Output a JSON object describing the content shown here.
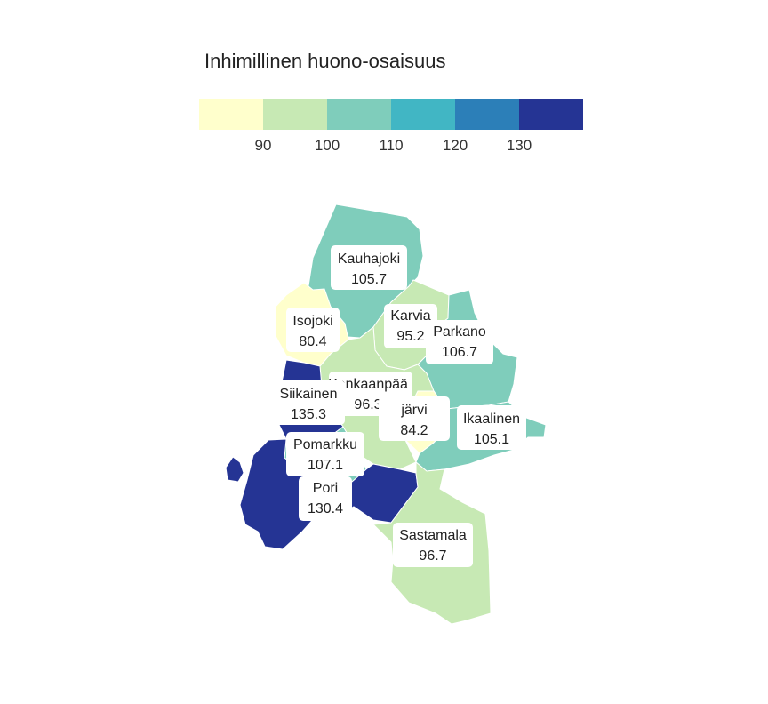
{
  "legend": {
    "title": "Inhimillinen huono-osaisuus",
    "ticks": [
      "90",
      "100",
      "110",
      "120",
      "130"
    ],
    "colors": [
      "#ffffcc",
      "#c7e9b4",
      "#7fcdbb",
      "#41b6c4",
      "#2c7fb8",
      "#253494"
    ]
  },
  "regions": [
    {
      "name": "Kauhajoki",
      "value": "105.7",
      "color": "#7fcdbb"
    },
    {
      "name": "Isojoki",
      "value": "80.4",
      "color": "#ffffcc"
    },
    {
      "name": "Karvia",
      "value": "95.2",
      "color": "#c7e9b4"
    },
    {
      "name": "Parkano",
      "value": "106.7",
      "color": "#7fcdbb"
    },
    {
      "name": "Kankaanpää",
      "value": "96.3",
      "color": "#c7e9b4"
    },
    {
      "name": "Siikainen",
      "value": "135.3",
      "color": "#253494"
    },
    {
      "name": "järvi",
      "value": "84.2",
      "color": "#ffffcc"
    },
    {
      "name": "Ikaalinen",
      "value": "105.1",
      "color": "#7fcdbb"
    },
    {
      "name": "Pomarkku",
      "value": "107.1",
      "color": "#7fcdbb"
    },
    {
      "name": "Pori",
      "value": "130.4",
      "color": "#253494"
    },
    {
      "name": "Sastamala",
      "value": "96.7",
      "color": "#c7e9b4"
    }
  ]
}
